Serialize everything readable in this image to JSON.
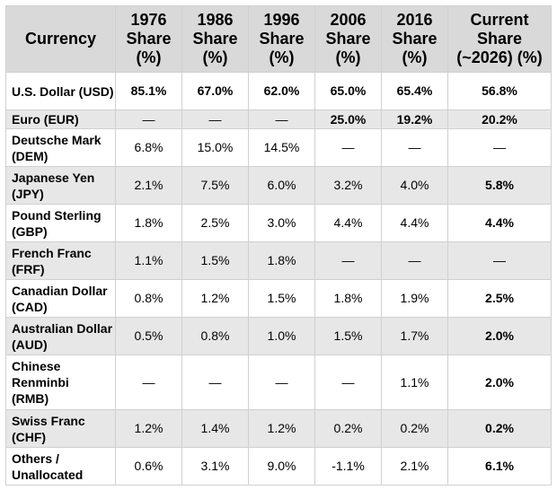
{
  "headers": [
    "Currency",
    "1976 Share (%)",
    "1986 Share (%)",
    "1996 Share (%)",
    "2006 Share (%)",
    "2016 Share (%)",
    "Current Share (~2026) (%)"
  ],
  "rows": [
    {
      "currency": "U.S. Dollar (USD)",
      "values": [
        "85.1%",
        "67.0%",
        "62.0%",
        "65.0%",
        "65.4%",
        "56.8%"
      ]
    },
    {
      "currency": "Euro (EUR)",
      "values": [
        "—",
        "—",
        "—",
        "25.0%",
        "19.2%",
        "20.2%"
      ]
    },
    {
      "currency": "Deutsche Mark (DEM)",
      "values": [
        "6.8%",
        "15.0%",
        "14.5%",
        "—",
        "—",
        "—"
      ]
    },
    {
      "currency": "Japanese Yen (JPY)",
      "values": [
        "2.1%",
        "7.5%",
        "6.0%",
        "3.2%",
        "4.0%",
        "5.8%"
      ]
    },
    {
      "currency": "Pound Sterling (GBP)",
      "values": [
        "1.8%",
        "2.5%",
        "3.0%",
        "4.4%",
        "4.4%",
        "4.4%"
      ]
    },
    {
      "currency": "French Franc (FRF)",
      "values": [
        "1.1%",
        "1.5%",
        "1.8%",
        "—",
        "—",
        "—"
      ]
    },
    {
      "currency": "Canadian Dollar (CAD)",
      "values": [
        "0.8%",
        "1.2%",
        "1.5%",
        "1.8%",
        "1.9%",
        "2.5%"
      ]
    },
    {
      "currency": "Australian Dollar (AUD)",
      "values": [
        "0.5%",
        "0.8%",
        "1.0%",
        "1.5%",
        "1.7%",
        "2.0%"
      ]
    },
    {
      "currency": "Chinese Renminbi (RMB)",
      "values": [
        "—",
        "—",
        "—",
        "—",
        "1.1%",
        "2.0%"
      ]
    },
    {
      "currency": "Swiss Franc (CHF)",
      "values": [
        "1.2%",
        "1.4%",
        "1.2%",
        "0.2%",
        "0.2%",
        "0.2%"
      ]
    },
    {
      "currency": "Others / Unallocated",
      "values": [
        "0.6%",
        "3.1%",
        "9.0%",
        "-1.1%",
        "2.1%",
        "6.1%"
      ]
    }
  ]
}
